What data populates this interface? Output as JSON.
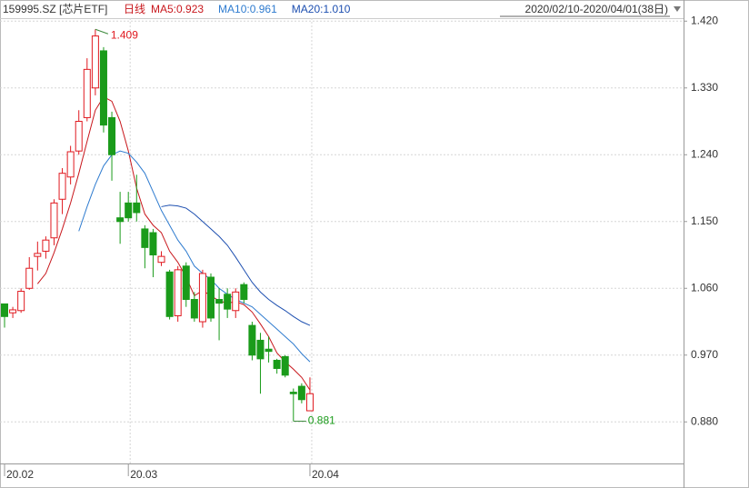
{
  "chart_data": {
    "type": "candlestick",
    "symbol": "159995.SZ [芯片ETF]",
    "period": "日线",
    "date_range": "2020/02/10-2020/04/01(38日)",
    "categories": [
      "20.02",
      null,
      null,
      null,
      null,
      null,
      null,
      null,
      null,
      null,
      null,
      null,
      null,
      null,
      null,
      "20.03",
      null,
      null,
      null,
      null,
      null,
      null,
      null,
      null,
      null,
      null,
      null,
      null,
      null,
      null,
      null,
      null,
      null,
      null,
      null,
      null,
      null,
      "20.04"
    ],
    "open": [
      1.039,
      1.027,
      1.03,
      1.06,
      1.103,
      1.11,
      1.128,
      1.18,
      1.21,
      1.245,
      1.29,
      1.33,
      1.38,
      1.29,
      1.155,
      1.175,
      1.175,
      1.14,
      1.135,
      1.095,
      1.082,
      1.023,
      1.09,
      1.045,
      1.015,
      1.075,
      1.045,
      1.052,
      1.03,
      1.065,
      1.01,
      0.99,
      0.978,
      0.963,
      0.968,
      0.92,
      0.928,
      0.895
    ],
    "close": [
      1.022,
      1.031,
      1.056,
      1.087,
      1.107,
      1.125,
      1.175,
      1.215,
      1.244,
      1.285,
      1.355,
      1.4,
      1.28,
      1.24,
      1.15,
      1.155,
      1.162,
      1.115,
      1.105,
      1.103,
      1.022,
      1.085,
      1.045,
      1.02,
      1.08,
      1.02,
      1.04,
      1.032,
      1.055,
      1.045,
      0.97,
      0.965,
      0.975,
      0.952,
      0.943,
      0.918,
      0.91,
      0.918
    ],
    "high": [
      1.039,
      1.035,
      1.06,
      1.102,
      1.123,
      1.13,
      1.18,
      1.222,
      1.252,
      1.3,
      1.37,
      1.409,
      1.385,
      1.298,
      1.19,
      1.19,
      1.213,
      1.145,
      1.14,
      1.11,
      1.085,
      1.09,
      1.095,
      1.055,
      1.085,
      1.08,
      1.06,
      1.06,
      1.06,
      1.068,
      1.015,
      1.0,
      0.995,
      0.965,
      0.97,
      0.925,
      0.932,
      0.94
    ],
    "low": [
      1.007,
      1.02,
      1.027,
      1.058,
      1.084,
      1.1,
      1.118,
      1.16,
      1.2,
      1.24,
      1.285,
      1.32,
      1.27,
      1.205,
      1.12,
      1.15,
      1.15,
      1.087,
      1.075,
      1.09,
      1.018,
      1.015,
      1.035,
      1.015,
      1.007,
      1.015,
      0.99,
      1.02,
      1.02,
      1.04,
      0.963,
      0.918,
      0.96,
      0.945,
      0.94,
      0.881,
      0.905,
      0.895
    ],
    "up_color": "#e0191f",
    "down_color": "#1a9b1a",
    "max_index": 11,
    "min_index": 35,
    "series": [
      {
        "name": "MA5",
        "label": "MA5:0.923",
        "color": "#c8171c",
        "values": [
          null,
          null,
          null,
          null,
          1.066,
          1.08,
          1.108,
          1.14,
          1.175,
          1.215,
          1.258,
          1.3,
          1.318,
          1.312,
          1.285,
          1.245,
          1.195,
          1.16,
          1.145,
          1.135,
          1.11,
          1.095,
          1.075,
          1.05,
          1.057,
          1.05,
          1.043,
          1.04,
          1.042,
          1.038,
          1.028,
          1.012,
          0.995,
          0.973,
          0.961,
          0.951,
          0.94,
          0.923
        ]
      },
      {
        "name": "MA10",
        "label": "MA10:0.961",
        "color": "#2e7bcf",
        "values": [
          null,
          null,
          null,
          null,
          null,
          null,
          null,
          null,
          null,
          1.137,
          1.17,
          1.2,
          1.225,
          1.24,
          1.245,
          1.242,
          1.23,
          1.215,
          1.19,
          1.165,
          1.145,
          1.125,
          1.11,
          1.09,
          1.08,
          1.072,
          1.06,
          1.052,
          1.045,
          1.04,
          1.035,
          1.025,
          1.015,
          1.005,
          0.995,
          0.985,
          0.972,
          0.961
        ]
      },
      {
        "name": "MA20",
        "label": "MA20:1.010",
        "color": "#1d4fb0",
        "values": [
          null,
          null,
          null,
          null,
          null,
          null,
          null,
          null,
          null,
          null,
          null,
          null,
          null,
          null,
          null,
          null,
          null,
          null,
          null,
          1.17,
          1.172,
          1.171,
          1.168,
          1.16,
          1.15,
          1.14,
          1.13,
          1.118,
          1.102,
          1.085,
          1.068,
          1.055,
          1.045,
          1.037,
          1.03,
          1.022,
          1.015,
          1.01
        ]
      }
    ],
    "ylim": [
      0.824,
      1.424
    ],
    "yticks": [
      {
        "value": 1.42,
        "label": "1.420"
      },
      {
        "value": 1.33,
        "label": "1.330"
      },
      {
        "value": 1.24,
        "label": "1.240"
      },
      {
        "value": 1.15,
        "label": "1.150"
      },
      {
        "value": 1.06,
        "label": "1.060"
      },
      {
        "value": 0.97,
        "label": "0.970"
      },
      {
        "value": 0.88,
        "label": "0.880"
      }
    ],
    "grid": true
  }
}
